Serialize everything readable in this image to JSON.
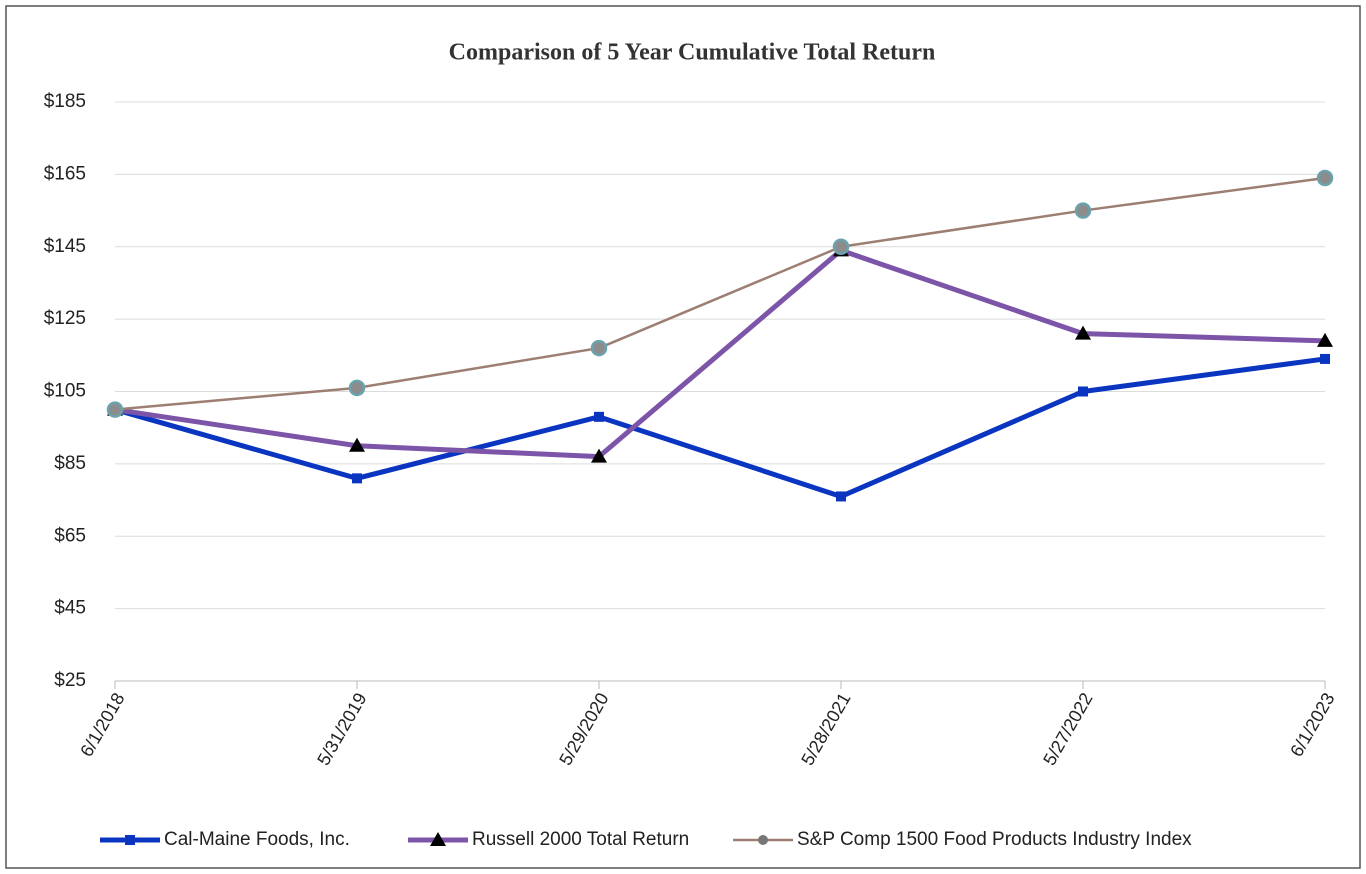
{
  "chart_data": {
    "type": "line",
    "title": "Comparison of 5 Year Cumulative Total Return",
    "categories": [
      "6/1/2018",
      "5/31/2019",
      "5/29/2020",
      "5/28/2021",
      "5/27/2022",
      "6/1/2023"
    ],
    "series": [
      {
        "name": "Cal-Maine Foods, Inc.",
        "color": "#0a35c0",
        "marker": "square",
        "marker_color": "#0a35c0",
        "values": [
          100,
          81,
          98,
          76,
          105,
          114
        ]
      },
      {
        "name": "Russell 2000 Total Return",
        "color": "#7d55a8",
        "marker": "triangle",
        "marker_color": "#000000",
        "values": [
          100,
          90,
          87,
          144,
          121,
          119
        ]
      },
      {
        "name": "S&P Comp 1500 Food Products Industry Index",
        "color": "#9c7e72",
        "marker": "circle",
        "marker_color": "#6aa3ad",
        "values": [
          100,
          106,
          117,
          145,
          155,
          164
        ]
      }
    ],
    "ylim": [
      25,
      185
    ],
    "yticks": [
      {
        "value": 25,
        "label": "$25"
      },
      {
        "value": 45,
        "label": "$45"
      },
      {
        "value": 65,
        "label": "$65"
      },
      {
        "value": 85,
        "label": "$85"
      },
      {
        "value": 105,
        "label": "$105"
      },
      {
        "value": 125,
        "label": "$125"
      },
      {
        "value": 145,
        "label": "$145"
      },
      {
        "value": 165,
        "label": "$165"
      },
      {
        "value": 185,
        "label": "$185"
      }
    ],
    "grid": true,
    "legend": "bottom"
  }
}
